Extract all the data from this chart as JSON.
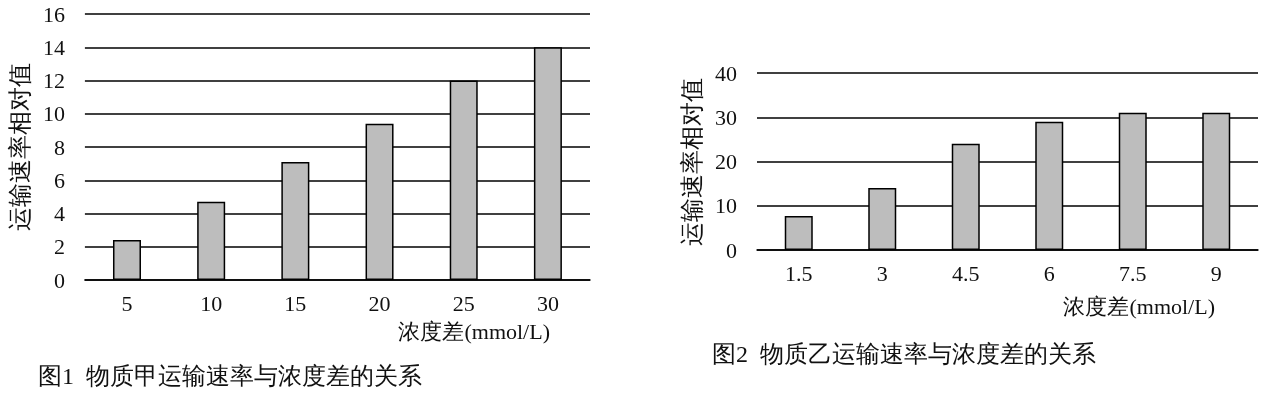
{
  "chart_data": [
    {
      "type": "bar",
      "title": "图1  物质甲运输速率与浓度差的关系",
      "xlabel": "浓度差(mmol/L)",
      "ylabel": "运输速率相对值",
      "categories": [
        "5",
        "10",
        "15",
        "20",
        "25",
        "30"
      ],
      "color": "#bdbdbd",
      "values": [
        2.4,
        4.7,
        7.1,
        9.4,
        12,
        14
      ],
      "ylim": [
        0,
        16
      ],
      "yticks": [
        0,
        2,
        4,
        6,
        8,
        10,
        12,
        14,
        16
      ],
      "grid": "y"
    },
    {
      "type": "bar",
      "title": "图2  物质乙运输速率与浓度差的关系",
      "xlabel": "浓度差(mmol/L)",
      "ylabel": "运输速率相对值",
      "categories": [
        "1.5",
        "3",
        "4.5",
        "6",
        "7.5",
        "9"
      ],
      "color": "#bdbdbd",
      "values": [
        7.7,
        14,
        24,
        29,
        31,
        31
      ],
      "ylim": [
        0,
        40
      ],
      "yticks": [
        0,
        10,
        20,
        30,
        40
      ],
      "grid": "y"
    }
  ]
}
